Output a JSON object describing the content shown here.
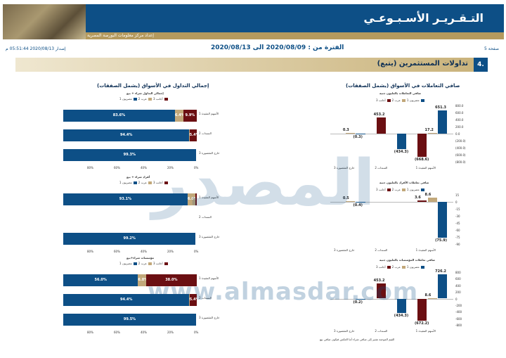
{
  "header": {
    "title": "التـقـريـر الأسـبـوعـي",
    "issuer": "إعداد مركز معلومات البورصة المصرية",
    "page": "صفحة 5"
  },
  "meta": {
    "issued": "إصدار 2020/08/13 05:51:44 م",
    "period": "الفترة من : 2020/08/09 الى 2020/08/13",
    "page": "صفحة 5"
  },
  "section": {
    "num": "4.",
    "title": "تداولات المستثمرين   (يتبع)"
  },
  "watermark": {
    "text": "المصدر",
    "url": "www.almasdar.com"
  },
  "colors": {
    "blue": "#0d4f86",
    "tan": "#c2a87a",
    "red": "#6b0f12"
  },
  "right_title": "صافي التعاملات في الأسواق (يشمل الصفقات)",
  "left_title": "إجمالي التداول في الأسواق (يشمل الصفقات)",
  "legend": {
    "foreign": "أجانب 3",
    "arab": "عرب 2",
    "egyptian": "مصريون 1"
  },
  "legend_d": {
    "a": "أجانب",
    "b": "عرب",
    "c": "مصريون"
  },
  "categories": [
    "الأسهم المقيدة 1",
    "السندات 2",
    "خارج المقصورة 3"
  ],
  "chart_data": [
    {
      "type": "bar",
      "title": "صافي التعاملات بالمليون جنيه",
      "categories": [
        "الأسهم المقيدة 1",
        "السندات 2",
        "خارج المقصورة 3"
      ],
      "series": [
        {
          "name": "مصريون 1",
          "values": [
            651.3,
            -434.3,
            -0.3
          ]
        },
        {
          "name": "عرب 2",
          "values": [
            17.2,
            null,
            0.3
          ]
        },
        {
          "name": "أجانب 3",
          "values": [
            -668.6,
            453.2,
            null
          ]
        }
      ],
      "ytick_labels": [
        "800.0",
        "600.0",
        "400.0",
        "200.0",
        "0.0",
        "(200.0)",
        "(400.0)",
        "(600.0)",
        "(800.0)"
      ]
    },
    {
      "type": "bar",
      "title": "صافي تعاملات الأفراد بالمليون جنيه",
      "categories": [
        "الأسهم المقيدة 1",
        "السندات 2",
        "خارج المقصورة 3"
      ],
      "series": [
        {
          "name": "مصريون 1",
          "values": [
            -75.9,
            null,
            -0.4
          ]
        },
        {
          "name": "عرب 2",
          "values": [
            8.6,
            null,
            0.5
          ]
        },
        {
          "name": "أجانب 3",
          "values": [
            3.6,
            null,
            null
          ]
        }
      ],
      "ytick_labels": [
        "15",
        "0",
        "-15",
        "-30",
        "-45",
        "-60",
        "-75",
        "-90"
      ]
    },
    {
      "type": "bar",
      "title": "صافي تعاملات المؤسسات بالمليون جنيه",
      "categories": [
        "الأسهم المقيدة 1",
        "السندات 2",
        "خارج المقصورة 3"
      ],
      "series": [
        {
          "name": "مصريون 1",
          "values": [
            726.2,
            -434.3,
            -0.2
          ]
        },
        {
          "name": "عرب 2",
          "values": [
            8.6,
            null,
            null
          ]
        },
        {
          "name": "أجانب 3",
          "values": [
            -672.2,
            453.2,
            null
          ]
        }
      ],
      "ytick_labels": [
        "800",
        "600",
        "400",
        "200",
        "0",
        "-200",
        "-400",
        "-600",
        "-800"
      ]
    },
    {
      "type": "bar",
      "title": "إجمالي التداول شراء + بيع",
      "categories": [
        "الأسهم المقيدة 1",
        "السندات 2",
        "خارج المقصورة 3"
      ],
      "series": [
        {
          "name": "مصريون 1",
          "values": [
            83.6,
            94.4,
            99.3
          ]
        },
        {
          "name": "عرب 2",
          "values": [
            6.4,
            0.2,
            null
          ]
        },
        {
          "name": "أجانب 3",
          "values": [
            9.9,
            5.4,
            null
          ]
        }
      ],
      "labels": [
        [
          "83.6%",
          "6.4%",
          "9.9%"
        ],
        [
          "94.4%",
          "0.2%",
          "5.4%"
        ],
        [
          "99.3%",
          "0.",
          ""
        ]
      ],
      "xtick_labels": [
        "0%",
        "20%",
        "40%",
        "60%",
        "80%"
      ]
    },
    {
      "type": "bar",
      "title": "أفراد شراء + بيع",
      "categories": [
        "الأسهم المقيدة 1",
        "السندات 2",
        "خارج المقصورة 3"
      ],
      "series": [
        {
          "name": "مصريون 1",
          "values": [
            93.1,
            null,
            99.2
          ]
        },
        {
          "name": "عرب 2",
          "values": [
            6.0,
            null,
            null
          ]
        },
        {
          "name": "أجانب 3",
          "values": [
            0.9,
            null,
            null
          ]
        }
      ],
      "labels": [
        [
          "93.1%",
          "6.0%",
          ""
        ],
        [
          "",
          "",
          ""
        ],
        [
          "99.2%",
          "0.",
          ""
        ]
      ],
      "xtick_labels": [
        "0%",
        "20%",
        "40%",
        "60%",
        "80%"
      ]
    },
    {
      "type": "bar",
      "title": "مؤسسات شراء+بيع",
      "categories": [
        "الأسهم المقيدة 1",
        "السندات 2",
        "خارج المقصورة 3"
      ],
      "series": [
        {
          "name": "مصريون 1",
          "values": [
            56.0,
            94.4,
            99.5
          ]
        },
        {
          "name": "عرب 2",
          "values": [
            6.0,
            0.2,
            null
          ]
        },
        {
          "name": "أجانب 3",
          "values": [
            38.0,
            5.4,
            null
          ]
        }
      ],
      "labels": [
        [
          "56.0%",
          "6.0%",
          "38.0%"
        ],
        [
          "94.4%",
          "0.2%",
          "5.4%"
        ],
        [
          "99.5%",
          "0.",
          ""
        ]
      ],
      "xtick_labels": [
        "0%",
        "20%",
        "40%",
        "60%",
        "80%"
      ]
    }
  ],
  "footnote": "القيم الموجبة تشير إلى صافي شراء أما العكس فيكون صافي بيع"
}
